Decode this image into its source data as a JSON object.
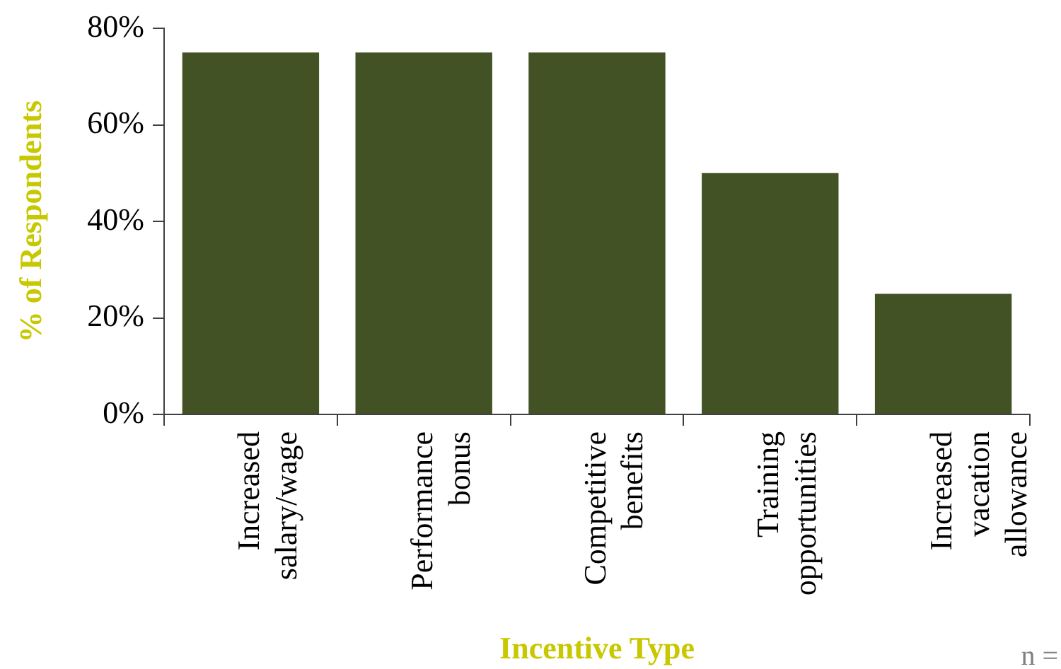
{
  "chart_data": {
    "type": "bar",
    "xlabel": "Incentive Type",
    "ylabel": "% of Respondents",
    "categories": [
      "Increased\nsalary/wage",
      "Performance\nbonus",
      "Competitive\nbenefits",
      "Training\nopportunities",
      "Increased\nvacation\nallowance"
    ],
    "values": [
      75,
      75,
      75,
      50,
      25
    ],
    "color": "#435225",
    "ylim": [
      0,
      80
    ],
    "yticks": [
      {
        "value": 0,
        "label": "0%"
      },
      {
        "value": 20,
        "label": "20%"
      },
      {
        "value": 40,
        "label": "40%"
      },
      {
        "value": 60,
        "label": "60%"
      },
      {
        "value": 80,
        "label": "80%"
      }
    ],
    "grid": false,
    "legend": false,
    "annotations": [
      "n ="
    ]
  }
}
